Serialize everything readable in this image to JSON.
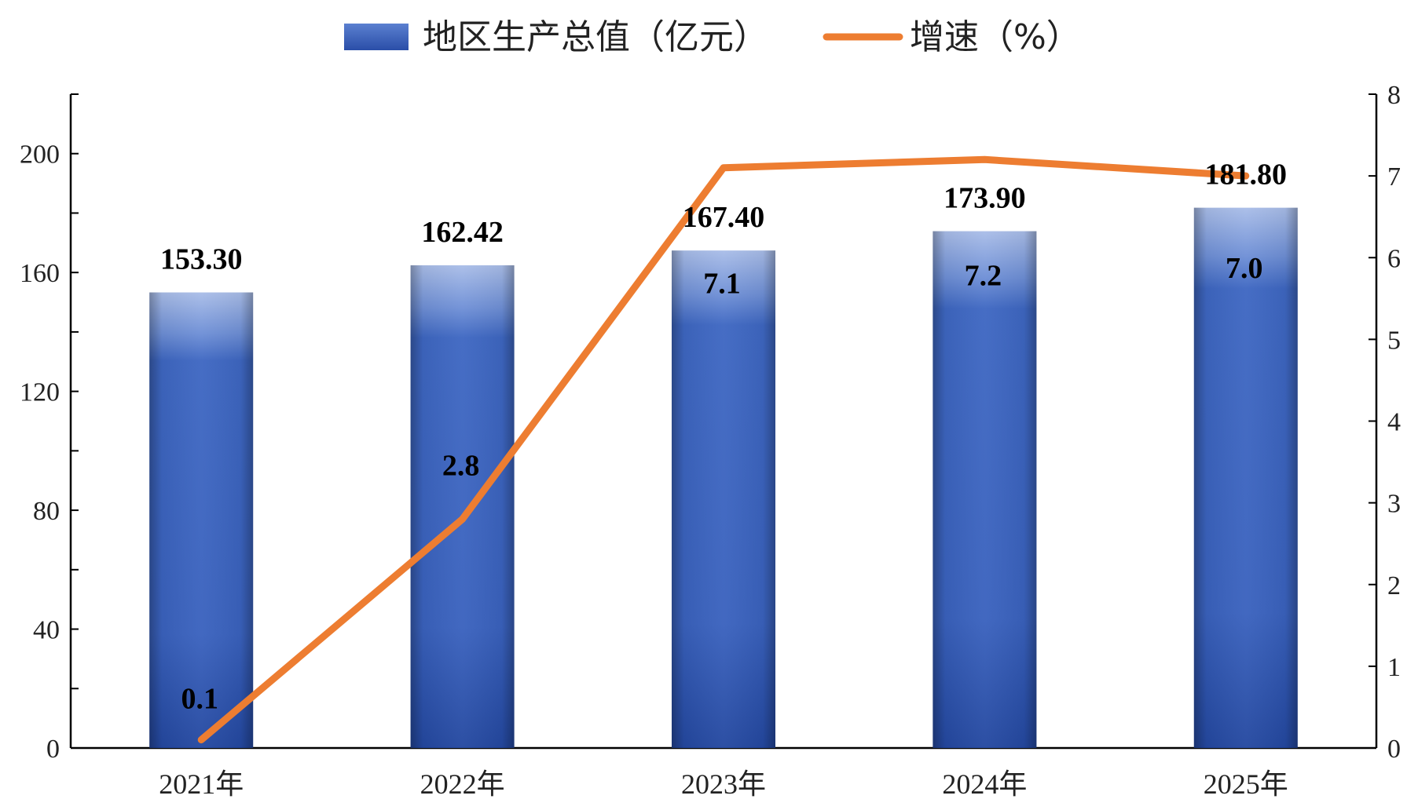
{
  "chart_data": {
    "type": "bar",
    "categories": [
      "2021年",
      "2022年",
      "2023年",
      "2024年",
      "2025年"
    ],
    "series": [
      {
        "name": "地区生产总值（亿元）",
        "type": "bar",
        "axis": "left",
        "values": [
          153.3,
          162.42,
          167.4,
          173.9,
          181.8
        ],
        "labels": [
          "153.30",
          "162.42",
          "167.40",
          "173.90",
          "181.80"
        ],
        "color": "#3a64c0"
      },
      {
        "name": "增速（%）",
        "type": "line",
        "axis": "right",
        "values": [
          0.1,
          2.8,
          7.1,
          7.2,
          7.0
        ],
        "labels": [
          "0.1",
          "2.8",
          "7.1",
          "7.2",
          "7.0"
        ],
        "color": "#ed7d31"
      }
    ],
    "y_left": {
      "min": 0,
      "max": 220,
      "ticks": [
        "0",
        "40",
        "80",
        "120",
        "160",
        "200"
      ]
    },
    "y_right": {
      "min": 0,
      "max": 8,
      "ticks": [
        "0",
        "1",
        "2",
        "3",
        "4",
        "5",
        "6",
        "7",
        "8"
      ]
    },
    "legend_position": "top",
    "grid": false
  }
}
